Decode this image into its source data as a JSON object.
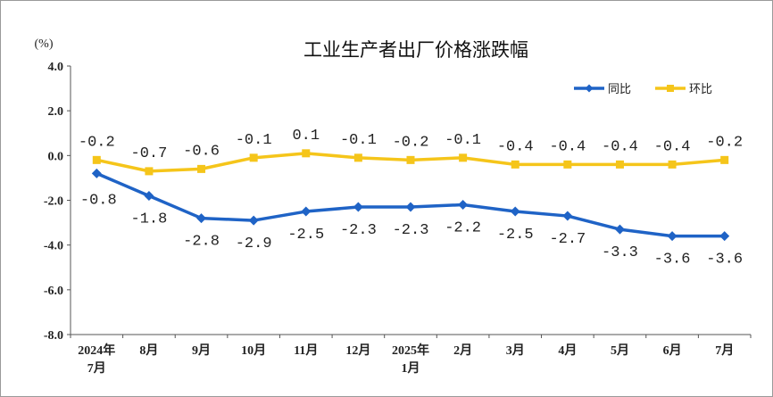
{
  "chart_data": {
    "type": "line",
    "title": "工业生产者出厂价格涨跌幅",
    "unit_label": "(%)",
    "ylim": [
      -8.0,
      4.0
    ],
    "yticks": [
      "4.0",
      "2.0",
      "0.0",
      "-2.0",
      "-4.0",
      "-6.0",
      "-8.0"
    ],
    "ytick_values": [
      4,
      2,
      0,
      -2,
      -4,
      -6,
      -8
    ],
    "categories": [
      [
        "2024年",
        "7月"
      ],
      [
        "8月"
      ],
      [
        "9月"
      ],
      [
        "10月"
      ],
      [
        "11月"
      ],
      [
        "12月"
      ],
      [
        "2025年",
        "1月"
      ],
      [
        "2月"
      ],
      [
        "3月"
      ],
      [
        "4月"
      ],
      [
        "5月"
      ],
      [
        "6月"
      ],
      [
        "7月"
      ]
    ],
    "series": [
      {
        "name": "同比",
        "color": "#1f63c6",
        "marker": "diamond",
        "values": [
          -0.8,
          -1.8,
          -2.8,
          -2.9,
          -2.5,
          -2.3,
          -2.3,
          -2.2,
          -2.5,
          -2.7,
          -3.3,
          -3.6,
          -3.6
        ],
        "labels": [
          "-0.8",
          "-1.8",
          "-2.8",
          "-2.9",
          "-2.5",
          "-2.3",
          "-2.3",
          "-2.2",
          "-2.5",
          "-2.7",
          "-3.3",
          "-3.6",
          "-3.6"
        ]
      },
      {
        "name": "环比",
        "color": "#f5c51a",
        "marker": "square",
        "values": [
          -0.2,
          -0.7,
          -0.6,
          -0.1,
          0.1,
          -0.1,
          -0.2,
          -0.1,
          -0.4,
          -0.4,
          -0.4,
          -0.4,
          -0.2
        ],
        "labels": [
          "-0.2",
          "-0.7",
          "-0.6",
          "-0.1",
          "0.1",
          "-0.1",
          "-0.2",
          "-0.1",
          "-0.4",
          "-0.4",
          "-0.4",
          "-0.4",
          "-0.2"
        ]
      }
    ],
    "legend_position": "top-right",
    "grid": false
  }
}
